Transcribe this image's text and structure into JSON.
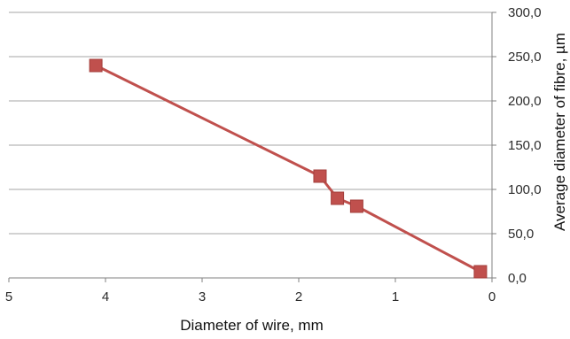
{
  "chart_data": {
    "type": "line",
    "title": "",
    "xlabel": "Diameter of wire, mm",
    "ylabel": "Average diameter of fibre, µm",
    "x_reversed": true,
    "xlim": [
      0,
      5
    ],
    "ylim": [
      0,
      300
    ],
    "x_ticks": [
      "5",
      "4",
      "3",
      "2",
      "1",
      "0"
    ],
    "y_ticks": [
      "0,0",
      "50,0",
      "100,0",
      "150,0",
      "200,0",
      "250,0",
      "300,0"
    ],
    "y_axis_side": "right",
    "grid": "horizontal",
    "legend": "none",
    "series": [
      {
        "color": "#c0504d",
        "marker": "square",
        "points": [
          {
            "x": 4.1,
            "y": 240
          },
          {
            "x": 1.78,
            "y": 115
          },
          {
            "x": 1.6,
            "y": 90
          },
          {
            "x": 1.4,
            "y": 81
          },
          {
            "x": 0.12,
            "y": 7
          }
        ]
      }
    ]
  }
}
